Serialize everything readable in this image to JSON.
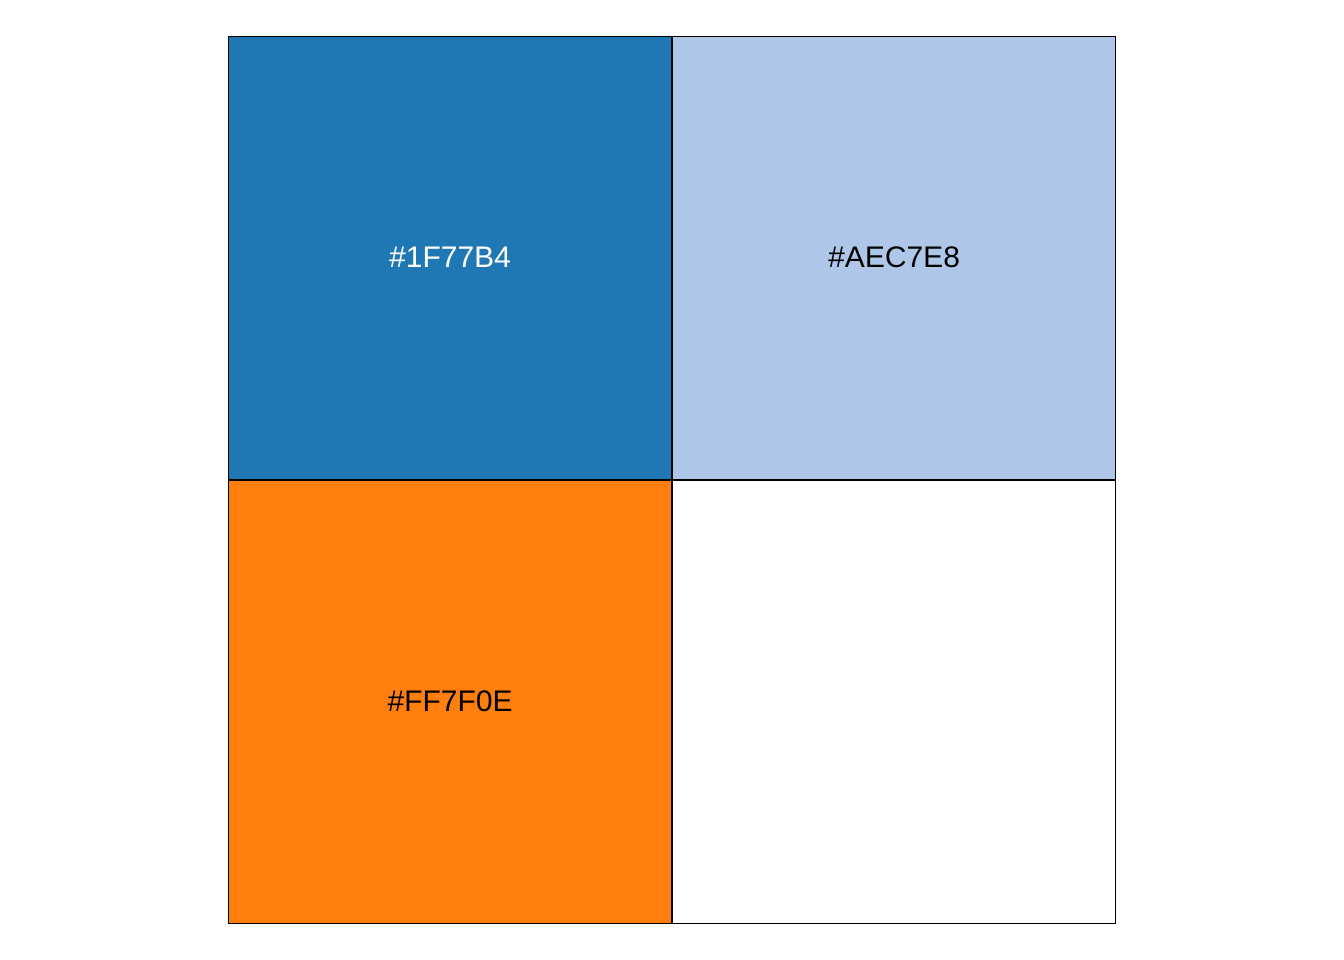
{
  "swatches": [
    {
      "label": "#1F77B4",
      "fill": "#1F77B4",
      "text_color": "#FFFFFF"
    },
    {
      "label": "#AEC7E8",
      "fill": "#AEC7E8",
      "text_color": "#000000"
    },
    {
      "label": "#FF7F0E",
      "fill": "#FF7F0E",
      "text_color": "#000000"
    },
    {
      "label": "",
      "fill": "#FFFFFF",
      "text_color": "#000000"
    }
  ]
}
